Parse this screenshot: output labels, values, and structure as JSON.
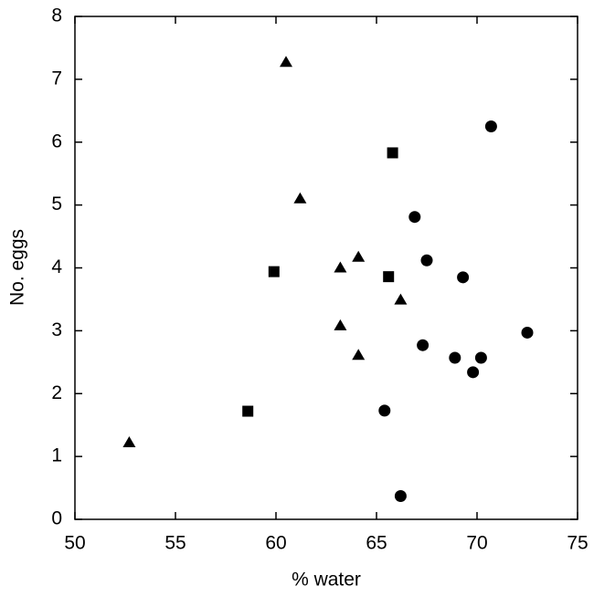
{
  "chart_data": {
    "type": "scatter",
    "x_label": "% water",
    "y_label": "No. eggs",
    "xlim": [
      50,
      75
    ],
    "xticks": [
      50,
      55,
      60,
      65,
      70,
      75
    ],
    "ylim": [
      0,
      8
    ],
    "yticks": [
      0,
      1,
      2,
      3,
      4,
      5,
      6,
      7,
      8
    ],
    "series": [
      {
        "marker": "triangle",
        "color": "#000000",
        "x": [
          52.7,
          60.5,
          61.2,
          63.2,
          64.1,
          63.2,
          64.1,
          66.2
        ],
        "y": [
          1.22,
          7.27,
          5.1,
          4.0,
          4.17,
          3.08,
          2.61,
          3.49
        ]
      },
      {
        "marker": "square",
        "color": "#000000",
        "x": [
          58.6,
          59.9,
          65.8,
          65.6
        ],
        "y": [
          1.72,
          3.94,
          5.83,
          3.86
        ]
      },
      {
        "marker": "circle",
        "color": "#000000",
        "x": [
          70.7,
          66.9,
          67.5,
          69.3,
          72.5,
          67.3,
          68.9,
          70.2,
          69.8,
          65.4,
          66.2
        ],
        "y": [
          6.25,
          4.81,
          4.12,
          3.85,
          2.97,
          2.77,
          2.57,
          2.57,
          2.34,
          1.73,
          0.37
        ]
      }
    ]
  }
}
